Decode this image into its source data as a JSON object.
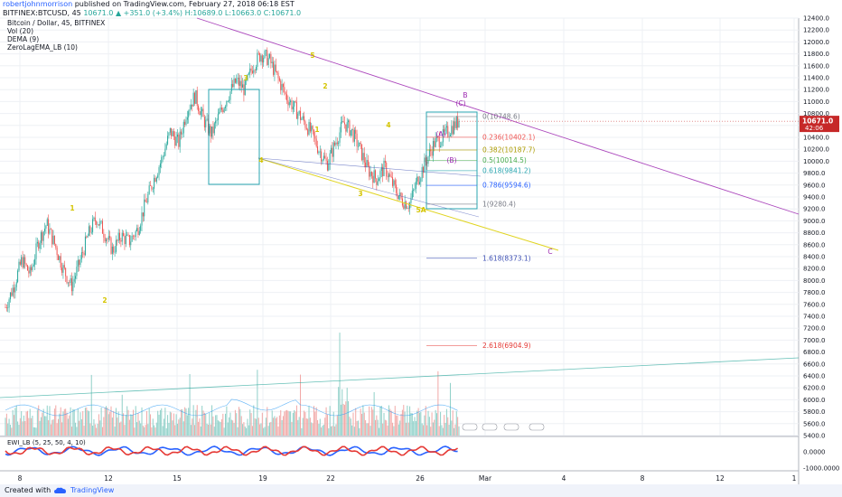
{
  "header": {
    "author": "robertjohnmorrison",
    "published": "published on TradingView.com, February 27, 2018 06:18 EST",
    "ticker": "BITFINEX:BTCUSD, 45",
    "ohlc": "10671.0 ▲ +351.0 (+3.4%) H:10689.0 L:10663.0 C:10671.0"
  },
  "legend": {
    "title": "Bitcoin / Dollar, 45, BITFINEX",
    "indicators": [
      "Vol (20)",
      "DEMA (9)",
      "ZeroLagEMA_LB (10)"
    ]
  },
  "colors": {
    "up": "#26a69a",
    "down": "#ef5350",
    "wave_label": "#d4c400",
    "corrective_label": "#9c27b0",
    "box": "#2aa6b0",
    "price_tag": "#c62828"
  },
  "chart_data": {
    "type": "candlestick",
    "y_axis": {
      "ylim": [
        5400,
        12400
      ],
      "tick_labels": [
        "12400.0",
        "12200.0",
        "12000.0",
        "11800.0",
        "11600.0",
        "11400.0",
        "11200.0",
        "11000.0",
        "10800.0",
        "10600.0",
        "10400.0",
        "10200.0",
        "10000.0",
        "9800.0",
        "9600.0",
        "9400.0",
        "9200.0",
        "9000.0",
        "8800.0",
        "8600.0",
        "8400.0",
        "8200.0",
        "8000.0",
        "7800.0",
        "7600.0",
        "7400.0",
        "7200.0",
        "7000.0",
        "6800.0",
        "6600.0",
        "6400.0",
        "6200.0",
        "6000.0",
        "5800.0",
        "5600.0",
        "5400.0"
      ]
    },
    "x_axis": {
      "tick_labels": [
        "8",
        "12",
        "15",
        "19",
        "22",
        "26",
        "Mar",
        "4",
        "8",
        "12",
        "1"
      ]
    },
    "last_price": "10671.0",
    "countdown": "42:06",
    "fibonacci": [
      {
        "label": "0(10748.6)",
        "value": 10748.6
      },
      {
        "label": "0.236(10402.1)",
        "value": 10402.1
      },
      {
        "label": "0.382(10187.7)",
        "value": 10187.7
      },
      {
        "label": "0.5(10014.5)",
        "value": 10014.5
      },
      {
        "label": "0.618(9841.2)",
        "value": 9841.2
      },
      {
        "label": "0.786(9594.6)",
        "value": 9594.6
      },
      {
        "label": "1(9280.4)",
        "value": 9280.4
      },
      {
        "label": "1.618(8373.1)",
        "value": 8373.1
      },
      {
        "label": "2.618(6904.9)",
        "value": 6904.9
      }
    ],
    "wave_labels": [
      "1",
      "2",
      "3",
      "4",
      "5",
      "1",
      "2",
      "3",
      "4",
      "5A"
    ],
    "corrective_labels": [
      "B",
      "(C)",
      "(A)",
      "(B)",
      "C"
    ],
    "price_path": [
      7550,
      7900,
      8350,
      8100,
      8650,
      8950,
      8600,
      8200,
      7900,
      8300,
      8750,
      9050,
      8800,
      8500,
      8750,
      8650,
      8850,
      9300,
      9700,
      10050,
      10500,
      10300,
      10850,
      11100,
      10700,
      10450,
      10800,
      11100,
      11350,
      11200,
      11600,
      11800,
      11700,
      11400,
      11100,
      10900,
      10700,
      10500,
      10200,
      9950,
      10300,
      10650,
      10500,
      10200,
      9850,
      9700,
      9900,
      9600,
      9350,
      9280,
      9700,
      10000,
      10300,
      10400,
      10550,
      10671
    ],
    "indicator": {
      "name": "EWI_LB",
      "params": "(5, 25, 50, 4, 10)",
      "tick_labels": [
        "0.0000",
        "-1000.0000"
      ]
    }
  },
  "footer": {
    "created_with": "Created with",
    "brand": "TradingView"
  }
}
